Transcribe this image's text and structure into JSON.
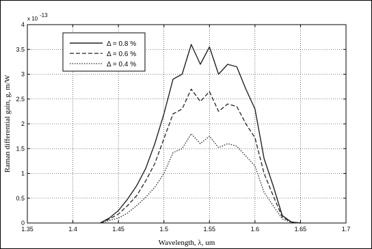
{
  "chart_data": {
    "type": "line",
    "title": "",
    "xlabel": "Wavelength, λ, um",
    "ylabel": "Raman differential gain, g, m/W",
    "y_multiplier_label": "x 10",
    "y_multiplier_exponent": "-13",
    "xlim": [
      1.35,
      1.7
    ],
    "ylim": [
      0,
      4
    ],
    "x_ticks": [
      1.35,
      1.4,
      1.45,
      1.5,
      1.55,
      1.6,
      1.65,
      1.7
    ],
    "x_tick_labels": [
      "1.35",
      "1.4",
      "1.45",
      "1.5",
      "1.55",
      "1.6",
      "1.65",
      "1.7"
    ],
    "y_ticks": [
      0,
      0.5,
      1,
      1.5,
      2,
      2.5,
      3,
      3.5,
      4
    ],
    "y_tick_labels": [
      "0",
      "0.5",
      "1",
      "1.5",
      "2",
      "2.5",
      "3",
      "3.5",
      "4"
    ],
    "grid": true,
    "legend_position": "top-left",
    "x": [
      1.43,
      1.44,
      1.45,
      1.46,
      1.47,
      1.48,
      1.49,
      1.5,
      1.51,
      1.52,
      1.53,
      1.54,
      1.55,
      1.56,
      1.57,
      1.58,
      1.59,
      1.6,
      1.61,
      1.62,
      1.63,
      1.64,
      1.65
    ],
    "series": [
      {
        "name": "Δ = 0.8 %",
        "style": "solid",
        "values": [
          0.0,
          0.1,
          0.25,
          0.48,
          0.75,
          1.1,
          1.6,
          2.2,
          2.9,
          3.0,
          3.6,
          3.2,
          3.55,
          3.0,
          3.2,
          3.15,
          2.7,
          2.3,
          1.3,
          0.75,
          0.15,
          0.02,
          0.0
        ]
      },
      {
        "name": "Δ = 0.6 %",
        "style": "dashed",
        "values": [
          0.0,
          0.08,
          0.18,
          0.35,
          0.55,
          0.85,
          1.2,
          1.7,
          2.2,
          2.3,
          2.7,
          2.45,
          2.65,
          2.25,
          2.4,
          2.35,
          2.0,
          1.72,
          1.0,
          0.55,
          0.12,
          0.02,
          0.0
        ]
      },
      {
        "name": "Δ = 0.4 %",
        "style": "dotted",
        "values": [
          0.0,
          0.05,
          0.1,
          0.2,
          0.35,
          0.52,
          0.72,
          1.0,
          1.42,
          1.5,
          1.8,
          1.6,
          1.75,
          1.52,
          1.6,
          1.55,
          1.35,
          1.15,
          0.62,
          0.35,
          0.08,
          0.01,
          0.0
        ]
      }
    ]
  }
}
